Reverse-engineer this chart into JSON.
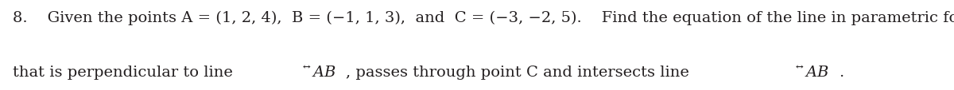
{
  "line1": "8.    Given the points A = (1, 2, 4),  B = (−1, 1, 3),  and  C = (−3, −2, 5).    Find the equation of the line in parametric form",
  "line2_pre": "that is perpendicular to line ",
  "line2_ab1": "$\\overleftrightarrow{AB}$",
  "line2_mid": ", passes through point C and intersects line ",
  "line2_ab2": "$\\overleftrightarrow{AB}$",
  "line2_post": ".",
  "background_color": "#ffffff",
  "text_color": "#231f20",
  "font_size": 14.0,
  "math_font_size": 14.0,
  "fig_width": 12.0,
  "fig_height": 1.15,
  "dpi": 100
}
